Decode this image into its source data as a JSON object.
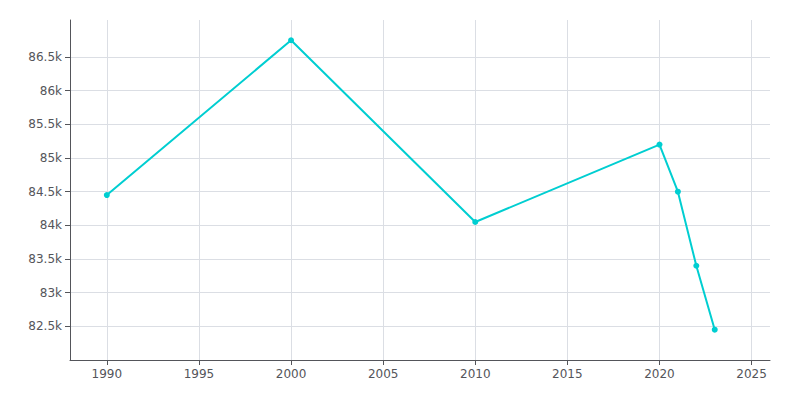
{
  "chart_data": {
    "type": "line",
    "x": [
      1990,
      2000,
      2010,
      2020,
      2021,
      2022,
      2023
    ],
    "values": [
      84450,
      86749,
      84050,
      85200,
      84500,
      83400,
      82450
    ],
    "color": "#00CED1",
    "marker": "circle",
    "xlim": [
      1988,
      2026
    ],
    "xticks": [
      1990,
      1995,
      2000,
      2005,
      2010,
      2015,
      2020,
      2025
    ],
    "ylim": [
      82000,
      87050
    ],
    "yticks": [
      {
        "value": 82500,
        "label": "82.5k"
      },
      {
        "value": 83000,
        "label": "83k"
      },
      {
        "value": 83500,
        "label": "83.5k"
      },
      {
        "value": 84000,
        "label": "84k"
      },
      {
        "value": 84500,
        "label": "84.5k"
      },
      {
        "value": 85000,
        "label": "85k"
      },
      {
        "value": 85500,
        "label": "85.5k"
      },
      {
        "value": 86000,
        "label": "86k"
      },
      {
        "value": 86500,
        "label": "86.5k"
      }
    ],
    "grid": true
  }
}
